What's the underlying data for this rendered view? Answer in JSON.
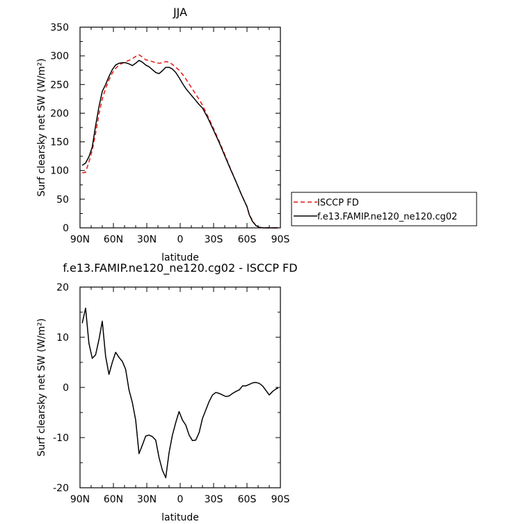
{
  "chart_data": [
    {
      "type": "line",
      "title": "JJA",
      "xlabel": "latitude",
      "ylabel": "Surf clearsky net SW (W/m²)",
      "xlim": [
        90,
        -90
      ],
      "ylim": [
        0,
        350
      ],
      "x_tick_labels": [
        "90N",
        "60N",
        "30N",
        "0",
        "30S",
        "60S",
        "90S"
      ],
      "y_tick_labels": [
        "0",
        "50",
        "100",
        "150",
        "200",
        "250",
        "300",
        "350"
      ],
      "legend_position": "right",
      "series": [
        {
          "name": "ISCCP FD",
          "color": "#e8140f",
          "dash": "dashed",
          "x": [
            88,
            85,
            82,
            79,
            76,
            73,
            70,
            67,
            64,
            61,
            58,
            55,
            52,
            49,
            46,
            43,
            40,
            37,
            34,
            31,
            28,
            25,
            22,
            19,
            16,
            13,
            10,
            7,
            4,
            1,
            -2,
            -5,
            -8,
            -11,
            -14,
            -17,
            -20,
            -25,
            -30,
            -35,
            -40,
            -45,
            -50,
            -55,
            -60,
            -62,
            -65,
            -68,
            -71,
            -75,
            -80,
            -85,
            -88
          ],
          "values": [
            96,
            97,
            115,
            135,
            165,
            198,
            225,
            243,
            258,
            270,
            278,
            284,
            287,
            290,
            292,
            295,
            299,
            302,
            298,
            293,
            292,
            290,
            288,
            287,
            288,
            290,
            289,
            285,
            280,
            275,
            268,
            260,
            251,
            242,
            233,
            224,
            214,
            194,
            173,
            151,
            128,
            104,
            81,
            58,
            37,
            24,
            12,
            4,
            1,
            0,
            0,
            0,
            0
          ]
        },
        {
          "name": "f.e13.FAMIP.ne120_ne120.cg02",
          "color": "#000000",
          "dash": "solid",
          "x": [
            88,
            85,
            82,
            79,
            76,
            73,
            70,
            67,
            64,
            61,
            58,
            55,
            52,
            49,
            46,
            43,
            40,
            37,
            34,
            31,
            28,
            25,
            22,
            19,
            16,
            13,
            10,
            7,
            4,
            1,
            -2,
            -5,
            -8,
            -11,
            -14,
            -17,
            -20,
            -25,
            -30,
            -35,
            -40,
            -45,
            -50,
            -55,
            -60,
            -62,
            -65,
            -68,
            -71,
            -75,
            -80,
            -85,
            -88
          ],
          "values": [
            109,
            113,
            124,
            141,
            178,
            211,
            238,
            250,
            264,
            276,
            284,
            287,
            288,
            288,
            286,
            283,
            287,
            292,
            289,
            284,
            281,
            276,
            271,
            269,
            274,
            280,
            280,
            277,
            271,
            262,
            252,
            243,
            236,
            229,
            222,
            215,
            209,
            191,
            170,
            149,
            126,
            103,
            81,
            58,
            37,
            23,
            11,
            4,
            1,
            0,
            0,
            0,
            0
          ]
        }
      ]
    },
    {
      "type": "line",
      "title": "f.e13.FAMIP.ne120_ne120.cg02 - ISCCP FD",
      "xlabel": "latitude",
      "ylabel": "Surf clearsky net SW (W/m²)",
      "xlim": [
        90,
        -90
      ],
      "ylim": [
        -20,
        20
      ],
      "x_tick_labels": [
        "90N",
        "60N",
        "30N",
        "0",
        "30S",
        "60S",
        "90S"
      ],
      "y_tick_labels": [
        "-20",
        "-10",
        "0",
        "10",
        "20"
      ],
      "series": [
        {
          "color": "#000000",
          "dash": "solid",
          "x": [
            88,
            85,
            82,
            79,
            76,
            73,
            70,
            67,
            64,
            61,
            58,
            55,
            52,
            49,
            46,
            43,
            40,
            37,
            34,
            31,
            28,
            25,
            22,
            19,
            16,
            13,
            10,
            7,
            4,
            1,
            -2,
            -5,
            -8,
            -11,
            -14,
            -17,
            -20,
            -23,
            -26,
            -29,
            -32,
            -35,
            -38,
            -41,
            -44,
            -47,
            -50,
            -53,
            -56,
            -59,
            -62,
            -65,
            -68,
            -71,
            -74,
            -77,
            -80,
            -83,
            -86,
            -88
          ],
          "values": [
            12.8,
            15.8,
            8.8,
            5.8,
            6.5,
            9.5,
            13.2,
            6.2,
            2.6,
            5.0,
            7.0,
            6.0,
            5.2,
            3.6,
            -0.5,
            -3.0,
            -6.5,
            -13.2,
            -11.5,
            -9.7,
            -9.5,
            -9.8,
            -10.5,
            -14.0,
            -16.5,
            -18.0,
            -13.0,
            -9.5,
            -7.0,
            -4.8,
            -6.5,
            -7.5,
            -9.5,
            -10.6,
            -10.5,
            -9.0,
            -6.2,
            -4.5,
            -2.8,
            -1.5,
            -1.0,
            -1.2,
            -1.5,
            -1.8,
            -1.7,
            -1.2,
            -0.8,
            -0.5,
            0.3,
            0.3,
            0.6,
            0.9,
            1.0,
            0.8,
            0.3,
            -0.6,
            -1.5,
            -0.8,
            -0.3,
            -0.1
          ]
        }
      ]
    }
  ]
}
